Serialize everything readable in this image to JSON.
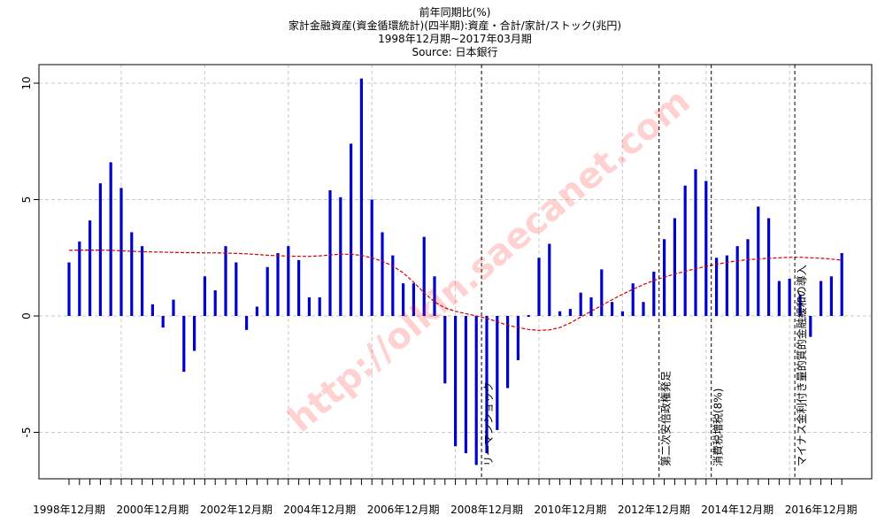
{
  "chart_data": {
    "type": "bar",
    "title_lines": [
      "前年同期比(%)",
      "家計金融資産(資金循環統計)(四半期):資産・合計/家計/ストック(兆円)",
      "1998年12月期~2017年03月期",
      "Source: 日本銀行"
    ],
    "x_tick_labels": [
      "1998年12月期",
      "2000年12月期",
      "2002年12月期",
      "2004年12月期",
      "2006年12月期",
      "2008年12月期",
      "2010年12月期",
      "2012年12月期",
      "2014年12月期",
      "2016年12月期"
    ],
    "y_ticks": [
      -5,
      0,
      5,
      10
    ],
    "ylim": [
      -7,
      10.7
    ],
    "series": [
      {
        "name": "前年同期比(%)",
        "type": "bar",
        "color": "#0000cc",
        "values": [
          2.3,
          3.2,
          4.1,
          5.7,
          6.6,
          5.5,
          3.6,
          3.0,
          0.5,
          -0.5,
          0.7,
          -2.4,
          -1.5,
          1.7,
          1.1,
          3.0,
          2.3,
          -0.6,
          0.4,
          2.1,
          2.7,
          3.0,
          2.4,
          0.8,
          0.8,
          5.4,
          5.1,
          7.4,
          10.2,
          5.0,
          3.6,
          2.6,
          1.4,
          1.4,
          3.4,
          1.7,
          -2.9,
          -5.6,
          -5.9,
          -6.4,
          -5.9,
          -4.9,
          -3.1,
          -1.9,
          0.0,
          2.5,
          3.1,
          0.2,
          0.3,
          1.0,
          0.8,
          2.0,
          0.6,
          0.2,
          1.4,
          0.6,
          1.9,
          3.3,
          4.2,
          5.6,
          6.3,
          5.8,
          2.5,
          2.6,
          3.0,
          3.3,
          4.7,
          4.2,
          1.5,
          1.6,
          0.9,
          -0.9,
          1.5,
          1.7,
          2.7
        ]
      },
      {
        "name": "trend",
        "type": "line",
        "style": "dashed",
        "color": "#cc0000",
        "values": [
          2.82,
          2.83,
          2.83,
          2.83,
          2.82,
          2.8,
          2.78,
          2.76,
          2.75,
          2.74,
          2.73,
          2.72,
          2.72,
          2.71,
          2.71,
          2.7,
          2.69,
          2.67,
          2.64,
          2.61,
          2.59,
          2.57,
          2.56,
          2.56,
          2.58,
          2.62,
          2.65,
          2.65,
          2.6,
          2.5,
          2.35,
          2.15,
          1.85,
          1.45,
          1.0,
          0.6,
          0.35,
          0.2,
          0.1,
          0.0,
          -0.1,
          -0.25,
          -0.4,
          -0.5,
          -0.58,
          -0.62,
          -0.6,
          -0.5,
          -0.3,
          -0.05,
          0.2,
          0.45,
          0.7,
          0.93,
          1.15,
          1.35,
          1.52,
          1.67,
          1.8,
          1.92,
          2.03,
          2.13,
          2.22,
          2.3,
          2.37,
          2.42,
          2.45,
          2.48,
          2.5,
          2.52,
          2.52,
          2.5,
          2.48,
          2.44,
          2.4
        ]
      }
    ],
    "events": [
      {
        "index": 39,
        "label": "リーマンショック"
      },
      {
        "index": 56,
        "label": "第二次安倍政権発足"
      },
      {
        "index": 61,
        "label": "消費税増税(8%)"
      },
      {
        "index": 69,
        "label": "マイナス金利付き量的質的金融緩和の導入"
      }
    ],
    "watermark": "http://olkin.saecanet.com"
  }
}
